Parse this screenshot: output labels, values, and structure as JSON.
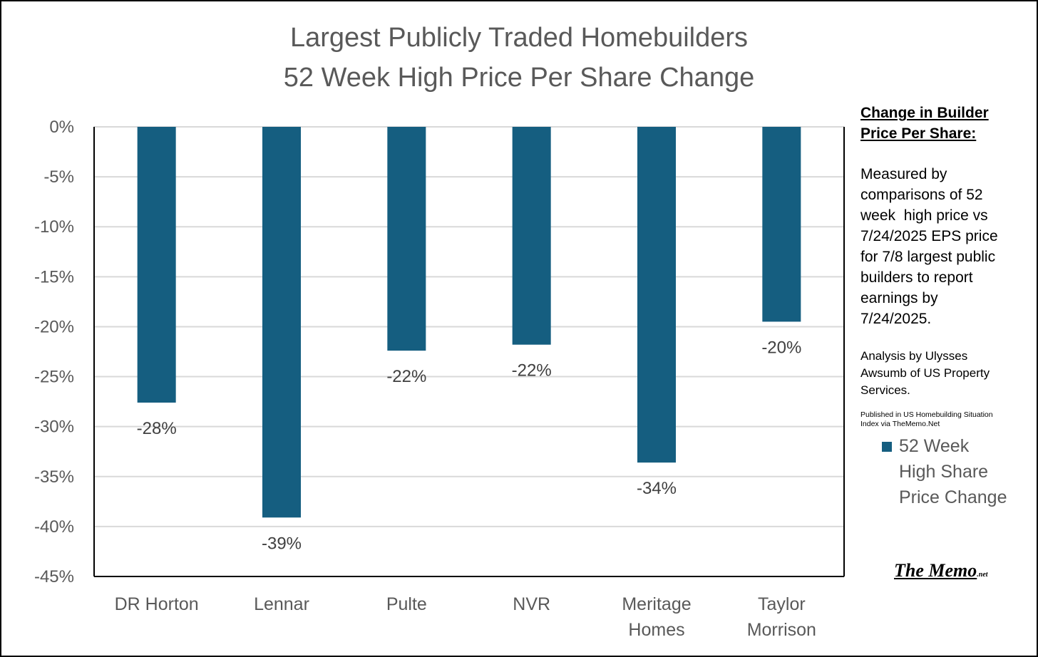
{
  "chart_data": {
    "type": "bar",
    "title": [
      "Largest Publicly Traded Homebuilders",
      "52 Week High Price Per Share Change"
    ],
    "categories": [
      [
        "DR Horton"
      ],
      [
        "Lennar"
      ],
      [
        "Pulte"
      ],
      [
        "NVR"
      ],
      [
        "Meritage",
        "Homes"
      ],
      [
        "Taylor",
        "Morrison"
      ]
    ],
    "series": [
      {
        "name": "52 Week High Share Price Change",
        "values": [
          -27.6,
          -39.1,
          -22.4,
          -21.8,
          -33.6,
          -19.5
        ],
        "data_labels": [
          "-28%",
          "-39%",
          "-22%",
          "-22%",
          "-34%",
          "-20%"
        ],
        "color": "#155E80"
      }
    ],
    "ylim": [
      -45,
      0
    ],
    "yticks": [
      0,
      -5,
      -10,
      -15,
      -20,
      -25,
      -30,
      -35,
      -40,
      -45
    ],
    "ytick_labels": [
      "0%",
      "-5%",
      "-10%",
      "-15%",
      "-20%",
      "-25%",
      "-30%",
      "-35%",
      "-40%",
      "-45%"
    ],
    "xlabel": "",
    "ylabel": "",
    "grid": true,
    "legend": {
      "position": "right",
      "label_lines": [
        "52 Week",
        "High Share",
        "Price Change"
      ]
    }
  },
  "sidebar": {
    "heading_lines": [
      "Change in Builder",
      "Price Per Share:"
    ],
    "body_lines": [
      "Measured by",
      "comparisons of 52",
      "week  high price vs",
      "7/24/2025 EPS price",
      "for 7/8 largest public",
      "builders to report",
      "earnings by",
      "7/24/2025."
    ],
    "analysis_lines": [
      "Analysis by Ulysses",
      "Awsumb of US Property",
      "Services."
    ],
    "published_lines": [
      "Published in US Homebuilding Situation",
      "Index via TheMemo.Net"
    ]
  },
  "brand": {
    "name": "The Memo",
    "suffix": ".net"
  },
  "colors": {
    "bar": "#155E80",
    "grid": "#D9D9D9",
    "axis_text": "#595959",
    "data_label": "#404040",
    "frame": "#000000"
  }
}
